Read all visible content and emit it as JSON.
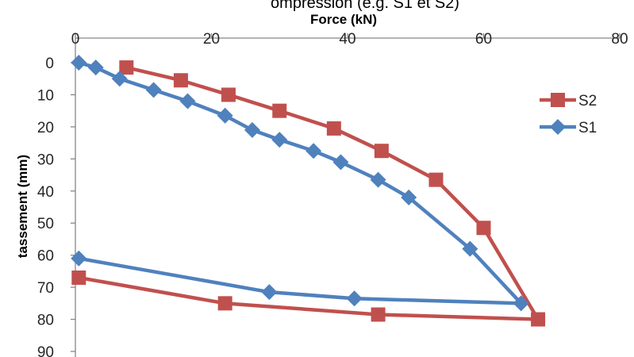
{
  "chart_data": {
    "type": "line",
    "title": "ompression (e.g. S1 et S2)",
    "xlabel": "Force (kN)",
    "ylabel": "tassement (mm)",
    "xlim": [
      0,
      80
    ],
    "ylim": [
      0,
      90
    ],
    "x_axis_position": "top",
    "y_axis_inverted": true,
    "x_ticks": [
      "0",
      "20",
      "40",
      "60",
      "80"
    ],
    "y_ticks": [
      "0",
      "10",
      "20",
      "30",
      "40",
      "50",
      "60",
      "70",
      "80",
      "90"
    ],
    "grid": false,
    "legend_position": "right",
    "series": [
      {
        "name": "S2",
        "color": "#C0504D",
        "marker": "square",
        "points": [
          [
            7.5,
            1.5
          ],
          [
            15.5,
            5.5
          ],
          [
            22.5,
            10
          ],
          [
            30,
            15
          ],
          [
            38,
            20.5
          ],
          [
            45,
            27.5
          ],
          [
            53,
            36.5
          ],
          [
            60,
            51.5
          ],
          [
            68,
            80
          ],
          [
            44.5,
            78.5
          ],
          [
            22,
            75
          ],
          [
            0.5,
            67
          ]
        ]
      },
      {
        "name": "S1",
        "color": "#4F81BD",
        "marker": "diamond",
        "points": [
          [
            0.5,
            0
          ],
          [
            3,
            1.5
          ],
          [
            6.5,
            5
          ],
          [
            11.5,
            8.5
          ],
          [
            16.5,
            12
          ],
          [
            22,
            16.5
          ],
          [
            26,
            21
          ],
          [
            30,
            24
          ],
          [
            35,
            27.5
          ],
          [
            39,
            31
          ],
          [
            44.5,
            36.5
          ],
          [
            49,
            42
          ],
          [
            58,
            58
          ],
          [
            65.5,
            75
          ],
          [
            41,
            73.5
          ],
          [
            28.5,
            71.5
          ],
          [
            0.5,
            61
          ]
        ]
      }
    ]
  }
}
